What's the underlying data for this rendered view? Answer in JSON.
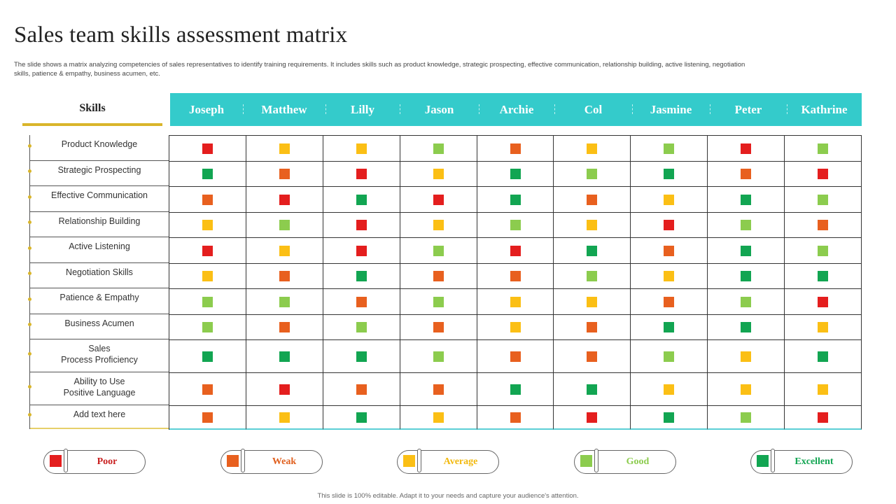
{
  "title": "Sales team skills assessment matrix",
  "subtitle": "The slide shows a matrix analyzing competencies of sales representatives to identify training requirements. It includes skills such as product knowledge, strategic prospecting, effective communication, relationship building, active listening, negotiation skills, patience & empathy, business acumen, etc.",
  "skills_header": "Skills",
  "names": [
    "Joseph",
    "Matthew",
    "Lilly",
    "Jason",
    "Archie",
    "Col",
    "Jasmine",
    "Peter",
    "Kathrine"
  ],
  "skills": [
    "Product Knowledge",
    "Strategic Prospecting",
    "Effective Communication",
    "Relationship Building",
    "Active Listening",
    "Negotiation Skills",
    "Patience & Empathy",
    "Business Acumen",
    "Sales\nProcess Proficiency",
    "Ability to Use\nPositive Language",
    "Add text here"
  ],
  "levels": {
    "poor": {
      "label": "Poor",
      "color": "#e41e1e"
    },
    "weak": {
      "label": "Weak",
      "color": "#e8601f"
    },
    "average": {
      "label": "Average",
      "color": "#fbbf15"
    },
    "good": {
      "label": "Good",
      "color": "#8ccc4e"
    },
    "excellent": {
      "label": "Excellent",
      "color": "#12a552"
    }
  },
  "legend_text_colors": {
    "poor": "#c81e1e",
    "weak": "#e0601f",
    "average": "#f2b90f",
    "good": "#8ccc4e",
    "excellent": "#12a552"
  },
  "ratings": [
    [
      "poor",
      "average",
      "average",
      "good",
      "weak",
      "average",
      "good",
      "poor",
      "good"
    ],
    [
      "excellent",
      "weak",
      "poor",
      "average",
      "excellent",
      "good",
      "excellent",
      "weak",
      "poor"
    ],
    [
      "weak",
      "poor",
      "excellent",
      "poor",
      "excellent",
      "weak",
      "average",
      "excellent",
      "good"
    ],
    [
      "average",
      "good",
      "poor",
      "average",
      "good",
      "average",
      "poor",
      "good",
      "weak"
    ],
    [
      "poor",
      "average",
      "poor",
      "good",
      "poor",
      "excellent",
      "weak",
      "excellent",
      "good"
    ],
    [
      "average",
      "weak",
      "excellent",
      "weak",
      "weak",
      "good",
      "average",
      "excellent",
      "excellent"
    ],
    [
      "good",
      "good",
      "weak",
      "good",
      "average",
      "average",
      "weak",
      "good",
      "poor"
    ],
    [
      "good",
      "weak",
      "good",
      "weak",
      "average",
      "weak",
      "excellent",
      "excellent",
      "average"
    ],
    [
      "excellent",
      "excellent",
      "excellent",
      "good",
      "weak",
      "weak",
      "good",
      "average",
      "excellent"
    ],
    [
      "weak",
      "poor",
      "weak",
      "weak",
      "excellent",
      "excellent",
      "average",
      "average",
      "average"
    ],
    [
      "weak",
      "average",
      "excellent",
      "average",
      "weak",
      "poor",
      "excellent",
      "good",
      "poor"
    ]
  ],
  "legend_order": [
    "poor",
    "weak",
    "average",
    "good",
    "excellent"
  ],
  "footer": "This slide is 100% editable. Adapt it to your needs and capture your audience's attention."
}
